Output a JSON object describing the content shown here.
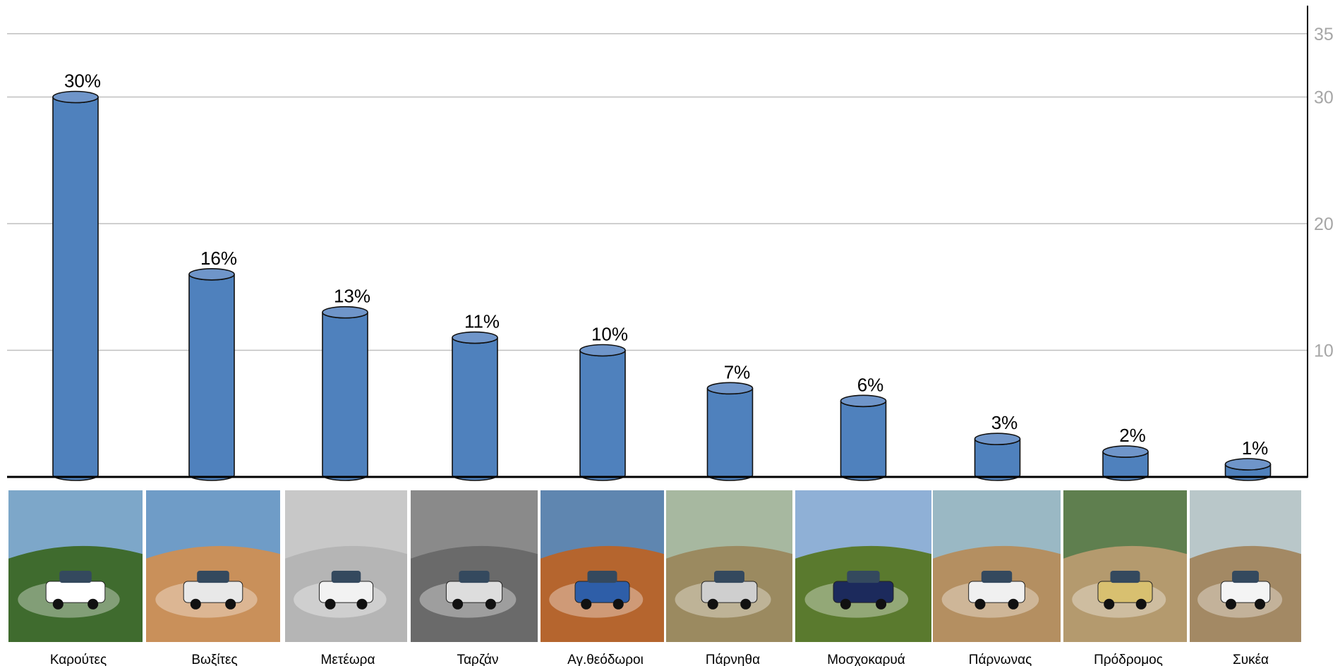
{
  "chart_data": {
    "type": "bar",
    "categories": [
      "Καρούτες",
      "Βωξίτες",
      "Μετέωρα",
      "Ταρζάν",
      "Αγ.θεόδωροι",
      "Πάρνηθα",
      "Μοσχοκαρυά",
      "Πάρνωνας",
      "Πρόδρομος",
      "Συκέα"
    ],
    "values": [
      30,
      16,
      13,
      11,
      10,
      7,
      6,
      3,
      2,
      1
    ],
    "data_labels": [
      "30%",
      "16%",
      "13%",
      "11%",
      "10%",
      "7%",
      "6%",
      "3%",
      "2%",
      "1%"
    ],
    "y_ticks": [
      10,
      20,
      30,
      35
    ],
    "y_tick_labels": [
      "10",
      "20",
      "30",
      "35"
    ],
    "ylim": [
      0,
      37.2
    ],
    "y_axis_position": "right",
    "grid": true,
    "bar_shape": "cylinder",
    "bar_color": "#4f81bd",
    "photos": [
      "rally-car-photo",
      "rally-car-photo",
      "rally-car-photo",
      "rally-car-photo",
      "rally-car-photo",
      "rally-car-photo",
      "rally-car-photo",
      "rally-car-photo",
      "rally-car-photo",
      "rally-car-photo"
    ]
  }
}
